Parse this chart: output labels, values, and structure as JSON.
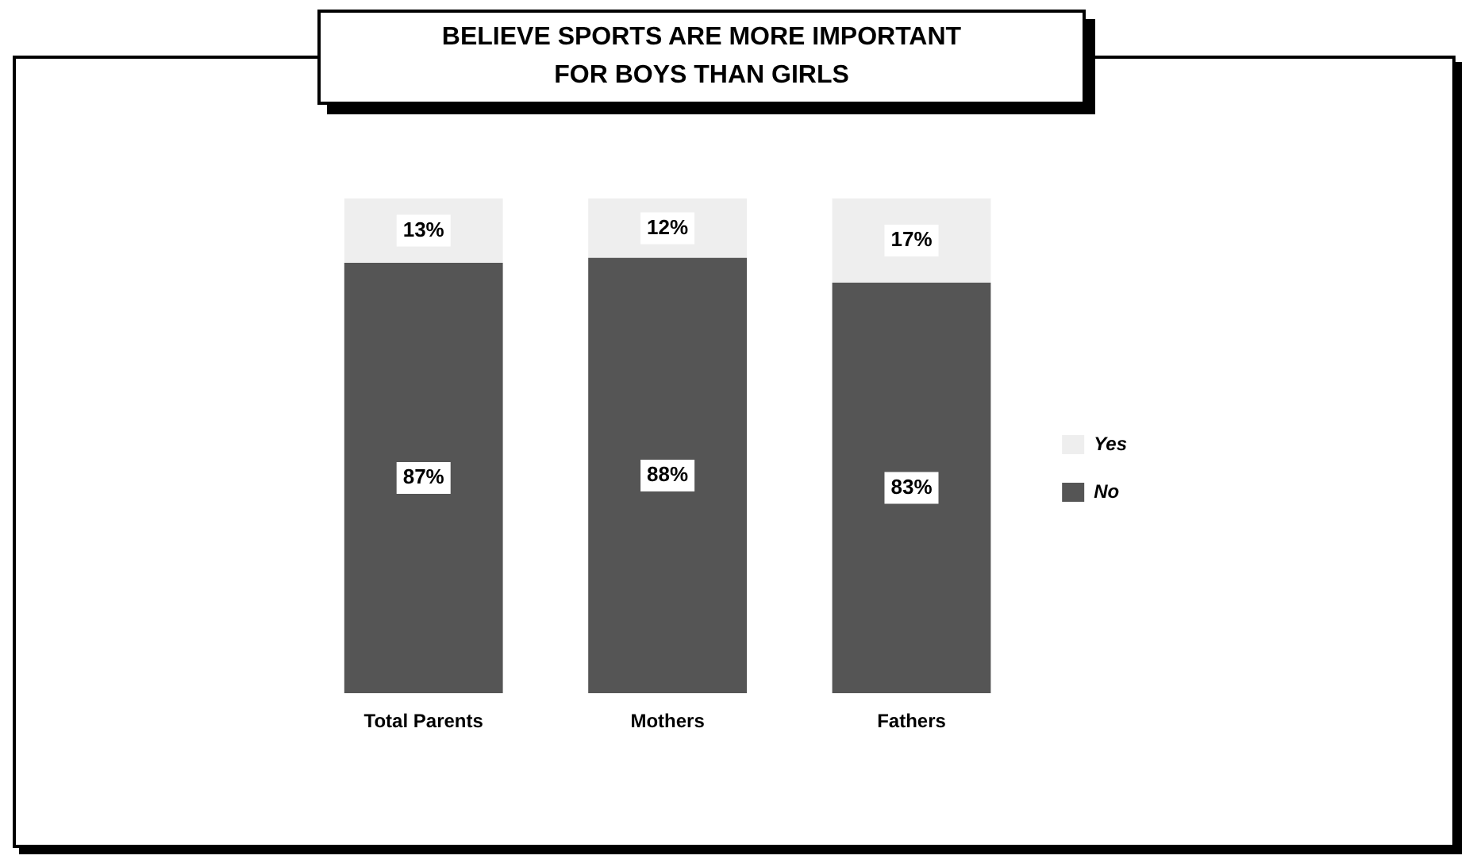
{
  "chart_data": {
    "type": "bar",
    "title": "BELIEVE SPORTS ARE MORE IMPORTANT\nFOR BOYS THAN GIRLS",
    "categories": [
      "Total Parents",
      "Mothers",
      "Fathers"
    ],
    "stacked": true,
    "legend": "right",
    "tick_labels": "x",
    "series": [
      {
        "name": "No",
        "color": "#555555",
        "values": [
          87,
          88,
          83
        ],
        "value_labels": [
          "87%",
          "88%",
          "83%"
        ]
      },
      {
        "name": "Yes",
        "color": "#eeeeee",
        "values": [
          13,
          12,
          17
        ],
        "value_labels": [
          "13%",
          "12%",
          "17%"
        ]
      }
    ]
  }
}
